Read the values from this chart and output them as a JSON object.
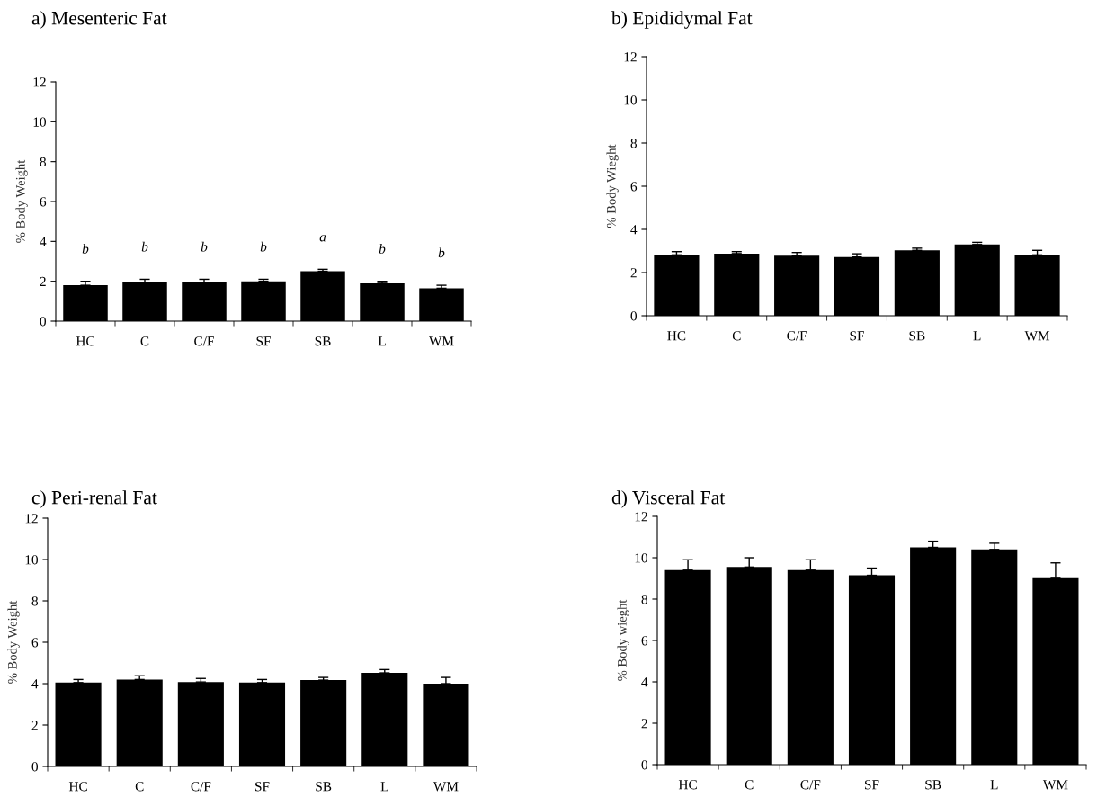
{
  "chart_data": [
    {
      "type": "bar",
      "title": "a) Mesenteric Fat",
      "ylabel": "% Body Weight",
      "categories": [
        "HC",
        "C",
        "C/F",
        "SF",
        "SB",
        "L",
        "WM"
      ],
      "values": [
        1.8,
        1.95,
        1.95,
        2.0,
        2.5,
        1.9,
        1.65
      ],
      "color": "#000000",
      "errors": [
        [
          1.8,
          2.0
        ],
        [
          1.95,
          2.1
        ],
        [
          1.95,
          2.1
        ],
        [
          2.0,
          2.1
        ],
        [
          2.5,
          2.6
        ],
        [
          1.9,
          2.0
        ],
        [
          1.65,
          1.8
        ]
      ],
      "annotations": [
        "b",
        "b",
        "b",
        "b",
        "a",
        "b",
        "b"
      ],
      "ylim": [
        0,
        12
      ],
      "yticks": [
        0,
        2,
        4,
        6,
        8,
        10,
        12
      ]
    },
    {
      "type": "bar",
      "title": "b) Epididymal Fat",
      "ylabel": "% Body Wieght",
      "categories": [
        "HC",
        "C",
        "C/F",
        "SF",
        "SB",
        "L",
        "WM"
      ],
      "values": [
        2.82,
        2.88,
        2.78,
        2.72,
        3.03,
        3.3,
        2.82
      ],
      "color": "#000000",
      "errors": [
        [
          2.82,
          2.97
        ],
        [
          2.88,
          2.97
        ],
        [
          2.78,
          2.93
        ],
        [
          2.72,
          2.87
        ],
        [
          3.03,
          3.13
        ],
        [
          3.3,
          3.4
        ],
        [
          2.82,
          3.03
        ]
      ],
      "ylim": [
        0,
        12
      ],
      "yticks": [
        0,
        2,
        4,
        6,
        8,
        10,
        12
      ]
    },
    {
      "type": "bar",
      "title": "c) Peri-renal Fat",
      "ylabel": "% Body Weight",
      "categories": [
        "HC",
        "C",
        "C/F",
        "SF",
        "SB",
        "L",
        "WM"
      ],
      "values": [
        4.05,
        4.2,
        4.08,
        4.05,
        4.17,
        4.52,
        4.0
      ],
      "color": "#000000",
      "errors": [
        [
          4.05,
          4.2
        ],
        [
          4.2,
          4.38
        ],
        [
          4.08,
          4.25
        ],
        [
          4.05,
          4.2
        ],
        [
          4.17,
          4.3
        ],
        [
          4.52,
          4.68
        ],
        [
          4.0,
          4.3
        ]
      ],
      "ylim": [
        0,
        12
      ],
      "yticks": [
        0,
        2,
        4,
        6,
        8,
        10,
        12
      ]
    },
    {
      "type": "bar",
      "title": "d) Visceral Fat",
      "ylabel": "% Body wieght",
      "categories": [
        "HC",
        "C",
        "C/F",
        "SF",
        "SB",
        "L",
        "WM"
      ],
      "values": [
        9.4,
        9.55,
        9.4,
        9.15,
        10.5,
        10.4,
        9.05
      ],
      "color": "#000000",
      "errors": [
        [
          9.4,
          9.9
        ],
        [
          9.55,
          10.0
        ],
        [
          9.4,
          9.9
        ],
        [
          9.15,
          9.5
        ],
        [
          10.5,
          10.8
        ],
        [
          10.4,
          10.7
        ],
        [
          9.05,
          9.75
        ]
      ],
      "ylim": [
        0,
        12
      ],
      "yticks": [
        0,
        2,
        4,
        6,
        8,
        10,
        12
      ]
    }
  ]
}
